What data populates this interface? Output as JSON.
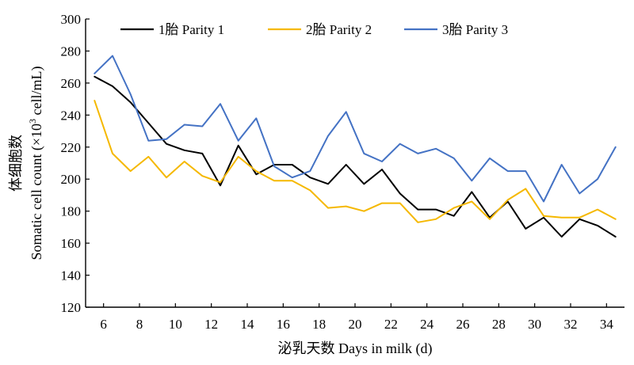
{
  "chart_data": {
    "type": "line",
    "xlabel": "泌乳天数 Days in milk (d)",
    "ylabel_cn": "体细胞数",
    "ylabel_en_prefix": "Somatic cell count (×10",
    "ylabel_en_sup": "3",
    "ylabel_en_suffix": " cell/mL)",
    "xlim": [
      5,
      35
    ],
    "ylim": [
      120,
      300
    ],
    "xticks": [
      6,
      8,
      10,
      12,
      14,
      16,
      18,
      20,
      22,
      24,
      26,
      28,
      30,
      32,
      34
    ],
    "yticks": [
      120,
      140,
      160,
      180,
      200,
      220,
      240,
      260,
      280,
      300
    ],
    "legend_position": "top",
    "x": [
      5.5,
      6.5,
      7.5,
      8.5,
      9.5,
      10.5,
      11.5,
      12.5,
      13.5,
      14.5,
      15.5,
      16.5,
      17.5,
      18.5,
      19.5,
      20.5,
      21.5,
      22.5,
      23.5,
      24.5,
      25.5,
      26.5,
      27.5,
      28.5,
      29.5,
      30.5,
      31.5,
      32.5,
      33.5,
      34.5
    ],
    "series": [
      {
        "name": "1胎 Parity 1",
        "color": "#000000",
        "values": [
          264,
          258,
          248,
          235,
          222,
          218,
          216,
          196,
          221,
          203,
          209,
          209,
          201,
          197,
          209,
          197,
          206,
          191,
          181,
          181,
          177,
          192,
          176,
          186,
          169,
          176,
          164,
          175,
          171,
          164
        ]
      },
      {
        "name": "2胎 Parity 2",
        "color": "#F5B800",
        "values": [
          249,
          216,
          205,
          214,
          201,
          211,
          202,
          198,
          214,
          205,
          199,
          199,
          193,
          182,
          183,
          180,
          185,
          185,
          173,
          175,
          182,
          186,
          175,
          187,
          194,
          177,
          176,
          176,
          181,
          175
        ]
      },
      {
        "name": "3胎 Parity 3",
        "color": "#4472C4",
        "values": [
          266,
          277,
          253,
          224,
          225,
          234,
          233,
          247,
          224,
          238,
          208,
          201,
          205,
          227,
          242,
          216,
          211,
          222,
          216,
          219,
          213,
          199,
          213,
          205,
          205,
          186,
          209,
          191,
          200,
          220
        ]
      }
    ]
  }
}
